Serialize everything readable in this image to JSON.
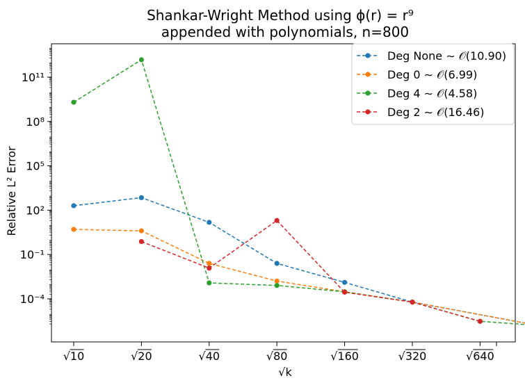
{
  "chart_data": {
    "type": "line",
    "title_line1": "Shankar-Wright Method using ϕ(r) = r⁹",
    "title_line2": "appended with polynomials, n=800",
    "xlabel": "√k",
    "ylabel": "Relative L² Error",
    "yscale": "log",
    "ylim": [
      2e-06,
      10000000000000.0
    ],
    "xlim_note": "x positions are equally spaced categories",
    "categories": [
      "√10",
      "√20",
      "√40",
      "√80",
      "√160",
      "√320",
      "√640"
    ],
    "y_ticks": [
      {
        "value": 100000000000.0,
        "label": "10¹¹"
      },
      {
        "value": 100000000.0,
        "label": "10⁸"
      },
      {
        "value": 100000.0,
        "label": "10⁵"
      },
      {
        "value": 100.0,
        "label": "10²"
      },
      {
        "value": 0.1,
        "label": "10⁻¹"
      },
      {
        "value": 0.0001,
        "label": "10⁻⁴"
      }
    ],
    "legend_position": "top-right",
    "grid": false,
    "series": [
      {
        "name": "Deg None ∼ 𝒪(10.90)",
        "color": "#1f77b4",
        "points": [
          [
            0,
            200
          ],
          [
            1,
            700
          ],
          [
            2,
            15
          ],
          [
            3,
            0.025
          ],
          [
            4,
            0.0013
          ],
          [
            5,
            6e-05
          ],
          [
            6.85,
            1.6e-06
          ]
        ]
      },
      {
        "name": "Deg 0 ∼ 𝒪(6.99)",
        "color": "#ff7f0e",
        "points": [
          [
            0,
            5
          ],
          [
            1,
            4
          ],
          [
            2,
            0.025
          ],
          [
            3,
            0.0016
          ],
          [
            4,
            0.0003
          ],
          [
            5,
            6e-05
          ],
          [
            6.85,
            1.6e-06
          ]
        ]
      },
      {
        "name": "Deg 4 ∼ 𝒪(4.58)",
        "color": "#2ca02c",
        "points": [
          [
            0,
            2000000000.0
          ],
          [
            1,
            1500000000000.0
          ],
          [
            2,
            0.0012
          ],
          [
            3,
            0.0008
          ],
          [
            4,
            0.0003
          ],
          [
            5,
            6e-05
          ],
          [
            6,
            3e-06
          ],
          [
            6.85,
            1.6e-06
          ]
        ]
      },
      {
        "name": "Deg 2 ∼ 𝒪(16.46)",
        "color": "#d62728",
        "points": [
          [
            1,
            0.75
          ],
          [
            2,
            0.012
          ],
          [
            3,
            20
          ],
          [
            4,
            0.00028
          ],
          [
            5,
            6e-05
          ],
          [
            6,
            3e-06
          ]
        ]
      }
    ]
  }
}
